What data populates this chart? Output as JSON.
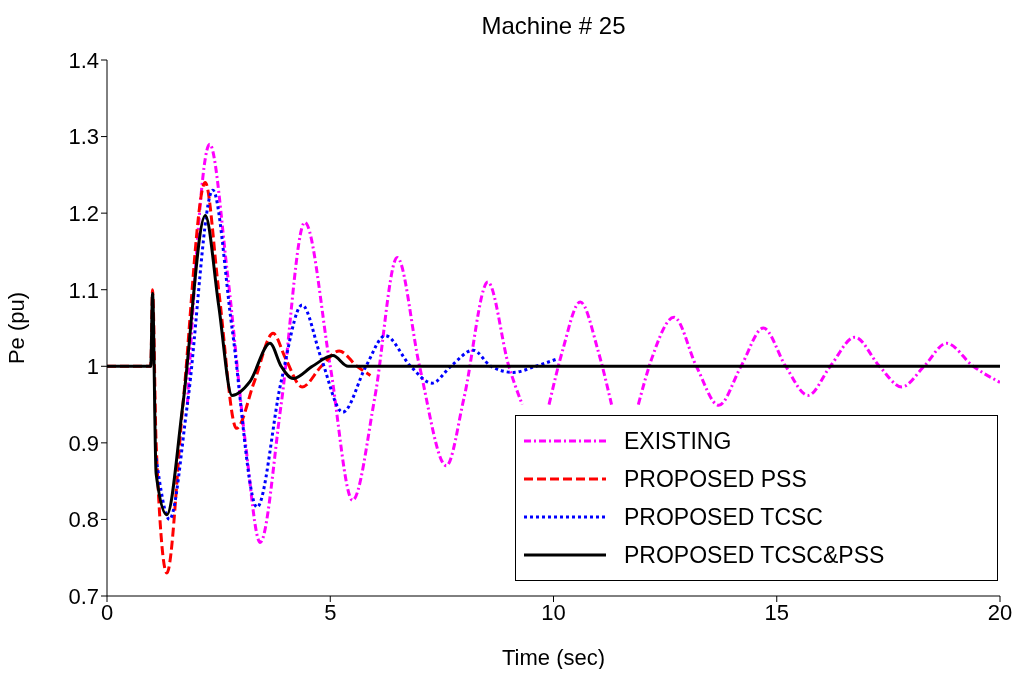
{
  "chart_data": {
    "type": "line",
    "title": "Machine # 25",
    "xlabel": "Time (sec)",
    "ylabel": "Pe (pu)",
    "xlim": [
      0,
      20
    ],
    "ylim": [
      0.7,
      1.4
    ],
    "xticks": [
      0,
      5,
      10,
      15,
      20
    ],
    "yticks": [
      0.7,
      0.8,
      0.9,
      1,
      1.1,
      1.2,
      1.3,
      1.4
    ],
    "legend": "bottom right",
    "marker": "none",
    "series": [
      {
        "name": "EXISTING",
        "color": "#ff00ff",
        "line_style": "dashdot",
        "x": [
          1.8,
          2.3,
          2.7,
          3.1,
          3.43,
          3.9,
          4.43,
          5.0,
          5.5,
          6.0,
          6.5,
          7.0,
          7.6,
          8.0,
          8.53,
          9.0,
          9.3,
          9.6,
          9.9,
          10.2,
          10.6,
          11.0,
          11.3,
          11.6,
          11.9,
          12.2,
          12.7,
          13.2,
          13.7,
          14.2,
          14.7,
          15.2,
          15.7,
          16.2,
          16.75,
          17.3,
          17.8,
          18.3,
          18.8,
          19.4,
          20
        ],
        "values": [
          0.95,
          1.29,
          1.12,
          0.9,
          0.77,
          0.95,
          1.188,
          1.0,
          0.825,
          0.96,
          1.142,
          1.0,
          0.87,
          0.96,
          1.11,
          1.0,
          0.95,
          null,
          0.95,
          1.02,
          1.084,
          1.02,
          0.95,
          null,
          0.95,
          1.01,
          1.064,
          1.0,
          0.949,
          1.0,
          1.05,
          1.0,
          0.962,
          1.0,
          1.038,
          1.0,
          0.973,
          1.0,
          1.03,
          1.0,
          0.979
        ]
      },
      {
        "name": "PROPOSED PSS",
        "color": "#ff0000",
        "line_style": "dashed",
        "x": [
          0,
          0.98,
          1.02,
          1.1,
          1.34,
          1.7,
          2.2,
          2.5,
          2.9,
          3.3,
          3.72,
          4.0,
          4.37,
          4.8,
          5.2,
          5.6,
          5.9
        ],
        "values": [
          1,
          1,
          1.1,
          0.9,
          0.73,
          0.95,
          1.24,
          1.1,
          0.919,
          0.98,
          1.043,
          1.01,
          0.973,
          1.0,
          1.02,
          1.0,
          0.988
        ]
      },
      {
        "name": "PROPOSED TCSC",
        "color": "#0000ff",
        "line_style": "dotted",
        "x": [
          1.1,
          1.4,
          1.8,
          2.37,
          2.8,
          3.36,
          3.9,
          4.37,
          4.8,
          5.28,
          5.8,
          6.23,
          6.8,
          7.28,
          7.7,
          8.2,
          8.6,
          9.1,
          9.6,
          10.1
        ],
        "values": [
          0.88,
          0.8,
          0.95,
          1.23,
          1.05,
          0.816,
          0.98,
          1.08,
          1.01,
          0.94,
          1.0,
          1.04,
          1.0,
          0.978,
          1.0,
          1.021,
          1.0,
          0.992,
          1.0,
          1.01
        ]
      },
      {
        "name": "PROPOSED TCSC&PSS",
        "color": "#000000",
        "line_style": "solid",
        "x": [
          0,
          0.98,
          1.02,
          1.1,
          1.34,
          1.7,
          2.2,
          2.5,
          2.8,
          3.2,
          3.65,
          3.9,
          4.17,
          4.6,
          5.06,
          5.4,
          5.7,
          20
        ],
        "values": [
          1,
          1,
          1.095,
          0.86,
          0.806,
          0.95,
          1.197,
          1.08,
          0.962,
          0.98,
          1.03,
          1.0,
          0.984,
          1.0,
          1.014,
          1.0,
          1.0,
          1.0
        ]
      }
    ]
  }
}
